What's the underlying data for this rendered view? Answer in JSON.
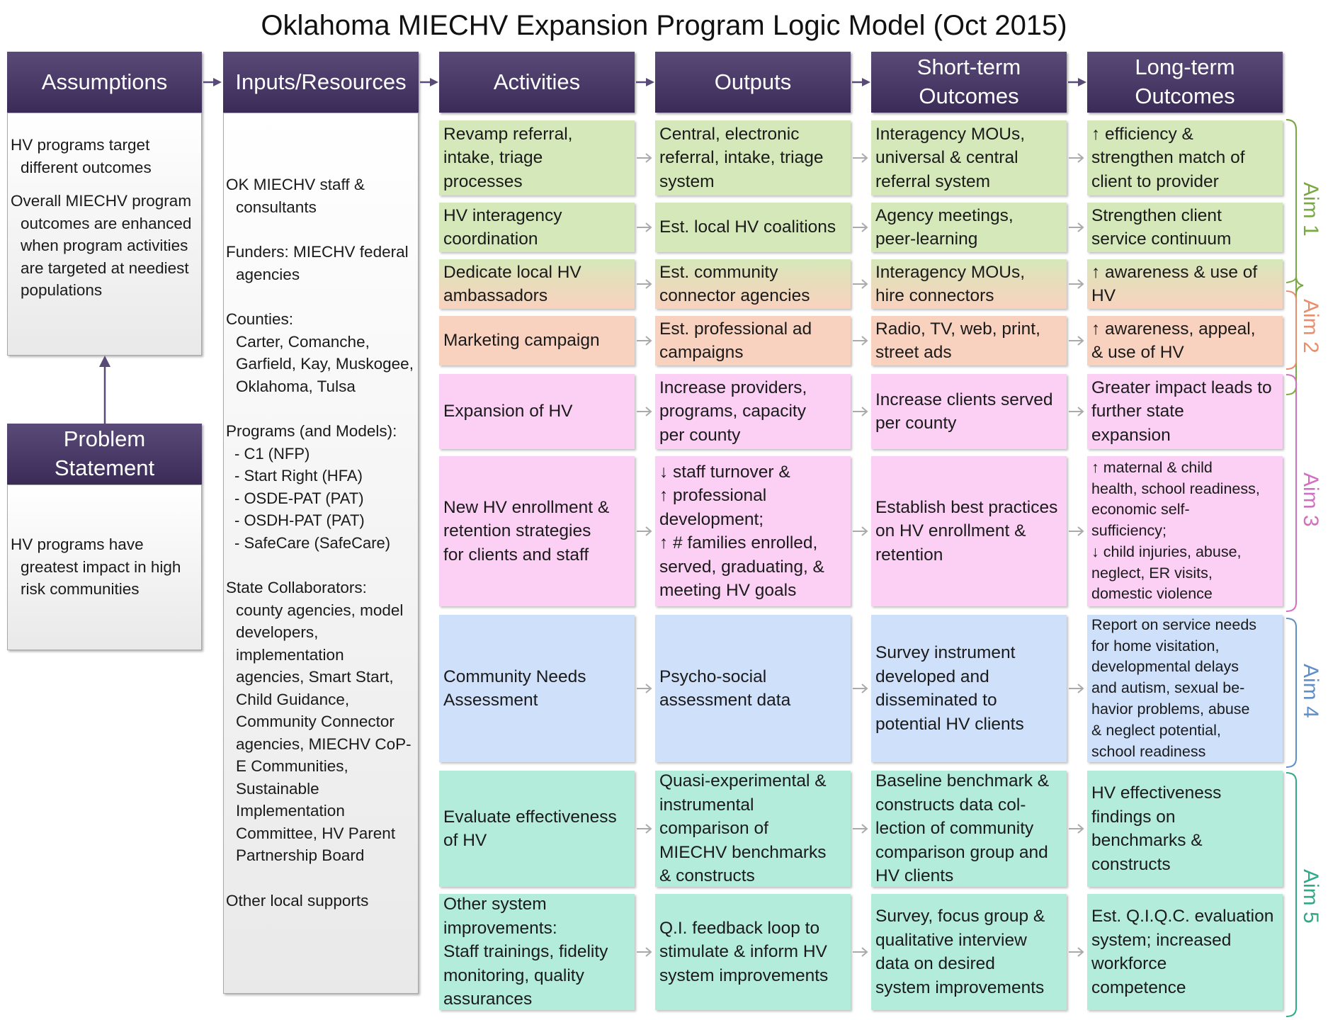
{
  "title": "Oklahoma MIECHV Expansion Program Logic Model (Oct 2015)",
  "headers": {
    "assumptions": "Assumptions",
    "inputs": "Inputs/Resources",
    "activities": "Activities",
    "outputs": "Outputs",
    "short_term": "Short-term\nOutcomes",
    "long_term": "Long-term\nOutcomes",
    "problem": "Problem\nStatement"
  },
  "assumptions": [
    "HV programs target different outcomes",
    "Overall MIECHV program outcomes are enhanced when program activities are targeted at neediest populations"
  ],
  "problem_statement": "HV programs have greatest impact in high risk communities",
  "inputs": {
    "staff": "OK MIECHV staff & consultants",
    "funders": "Funders: MIECHV federal agencies",
    "counties_label": "Counties:",
    "counties": "Carter, Comanche, Garfield, Kay, Muskogee, Oklahoma, Tulsa",
    "programs_label": "Programs (and Models):",
    "programs": [
      "- C1 (NFP)",
      "- Start Right (HFA)",
      "- OSDE-PAT (PAT)",
      "- OSDH-PAT (PAT)",
      "- SafeCare (SafeCare)"
    ],
    "collab_label": "State Collaborators:",
    "collaborators": "county agencies, model developers, implementation agencies, Smart Start, Child Guidance, Community Connector agencies, MIECHV CoP-E Communities, Sustainable Implementation Committee, HV Parent Partnership Board",
    "other": "Other local supports"
  },
  "rows": [
    {
      "activity": "Revamp referral,\n  intake, triage\n  processes",
      "output": "Central, electronic\n  referral, intake, triage\n  system",
      "short": "Interagency MOUs,\n  universal & central\n  referral system",
      "long": "↑ efficiency &\n  strengthen match of\n  client to provider"
    },
    {
      "activity": "HV interagency\n  coordination",
      "output": "Est. local HV coalitions",
      "short": "Agency meetings,\n  peer-learning",
      "long": "Strengthen client\n  service continuum"
    },
    {
      "activity": "Dedicate local HV\n  ambassadors",
      "output": "Est. community\n  connector agencies",
      "short": "Interagency MOUs,\n  hire connectors",
      "long": "↑ awareness & use of\n  HV"
    },
    {
      "activity": "Marketing campaign",
      "output": "Est. professional ad\n  campaigns",
      "short": "Radio, TV, web, print,\n  street ads",
      "long": "↑ awareness, appeal,\n  & use of HV"
    },
    {
      "activity": "Expansion of HV",
      "output": "Increase providers,\n  programs, capacity\n  per county",
      "short": "Increase clients served\n  per county",
      "long": "Greater impact leads to\n  further state\n  expansion"
    },
    {
      "activity": "New HV enrollment &\n  retention strategies\n  for clients and staff",
      "output": "↓ staff turnover &\n  ↑ professional\n  development;\n↑ # families enrolled,\n  served, graduating, &\n  meeting HV goals",
      "short": "Establish best practices\n  on HV enrollment &\n  retention",
      "long": "↑ maternal & child\n  health, school readiness,\n  economic self-\n  sufficiency;\n↓ child injuries, abuse,\n  neglect, ER visits,\n  domestic violence"
    },
    {
      "activity": "Community Needs\n  Assessment",
      "output": "Psycho-social\n  assessment data",
      "short": "Survey instrument\n  developed and\n  disseminated to\n  potential HV clients",
      "long": "Report on service needs\n  for home visitation,\n  developmental delays\n  and autism, sexual be-\n  havior problems, abuse\n  & neglect potential,\n  school readiness"
    },
    {
      "activity": "Evaluate effectiveness\n  of HV",
      "output": "Quasi-experimental &\n  instrumental\n  comparison of\n  MIECHV benchmarks\n  & constructs",
      "short": "Baseline benchmark &\n  constructs data col-\n  lection of community\n  comparison group and\n  HV clients",
      "long": "HV effectiveness\n  findings on\n  benchmarks &\n  constructs"
    },
    {
      "activity": "Other system\n  improvements:\nStaff trainings, fidelity\n  monitoring, quality\n  assurances",
      "output": "Q.I. feedback loop to\n  stimulate & inform HV\n  system improvements",
      "short": "Survey, focus group &\n  qualitative interview\n  data on desired\n  system improvements",
      "long": "Est. Q.I.Q.C. evaluation\n  system; increased\n  workforce\n  competence"
    }
  ],
  "aims": [
    {
      "label": "Aim 1",
      "color": "#7aa843"
    },
    {
      "label": "Aim 2",
      "color": "#e98e6c"
    },
    {
      "label": "Aim 3",
      "color": "#d36fc3"
    },
    {
      "label": "Aim 4",
      "color": "#5e8fc9"
    },
    {
      "label": "Aim 5",
      "color": "#2fa987"
    }
  ],
  "colors": {
    "header": "#3f305c",
    "green": "#d5e8b9",
    "orange": "#f9d2bf",
    "pink": "#fcd0f4",
    "blue": "#cfe0fb",
    "teal": "#b4ecdc"
  }
}
